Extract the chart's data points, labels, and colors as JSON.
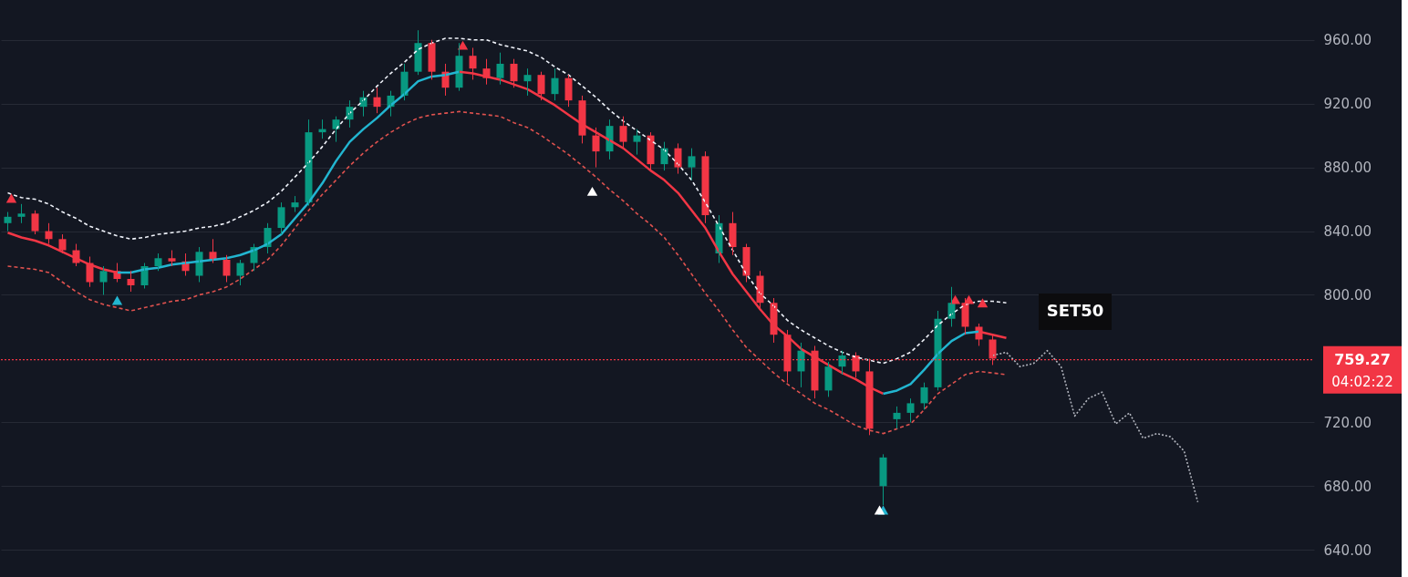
{
  "chart_data": {
    "type": "candlestick",
    "categories": [
      null,
      null,
      null,
      null,
      null,
      null,
      null,
      null,
      null,
      null,
      null,
      null,
      null,
      null,
      null,
      null,
      null,
      null,
      null,
      null,
      null,
      null,
      null,
      null,
      null,
      null,
      null,
      null,
      null,
      null,
      null,
      null,
      null,
      null,
      null,
      null,
      null,
      null,
      null,
      null,
      null,
      null,
      null,
      null,
      null,
      null,
      null,
      null,
      null,
      null,
      null,
      null,
      null,
      null,
      null,
      null,
      null,
      null,
      null,
      null,
      null,
      null,
      null,
      null,
      null,
      null,
      null,
      null,
      null,
      null,
      null,
      null,
      null,
      null,
      null,
      null,
      null,
      null,
      null,
      null,
      null,
      null,
      null,
      null,
      null,
      null,
      null,
      null,
      null,
      null,
      null,
      null,
      null,
      null,
      null,
      null
    ],
    "ohlc": [
      [
        845,
        852,
        840,
        849
      ],
      [
        849,
        857,
        845,
        851
      ],
      [
        851,
        853,
        838,
        840
      ],
      [
        840,
        845,
        832,
        835
      ],
      [
        835,
        838,
        826,
        828
      ],
      [
        828,
        832,
        818,
        820
      ],
      [
        820,
        824,
        805,
        808
      ],
      [
        808,
        818,
        800,
        815
      ],
      [
        815,
        820,
        808,
        810
      ],
      [
        810,
        815,
        802,
        806
      ],
      [
        806,
        820,
        804,
        818
      ],
      [
        818,
        826,
        815,
        823
      ],
      [
        823,
        828,
        818,
        821
      ],
      [
        821,
        826,
        812,
        815
      ],
      [
        812,
        830,
        808,
        827
      ],
      [
        827,
        835,
        820,
        822
      ],
      [
        822,
        825,
        808,
        812
      ],
      [
        812,
        822,
        806,
        820
      ],
      [
        820,
        832,
        815,
        830
      ],
      [
        830,
        845,
        826,
        842
      ],
      [
        842,
        858,
        838,
        855
      ],
      [
        855,
        862,
        852,
        858
      ],
      [
        858,
        910,
        856,
        902
      ],
      [
        902,
        910,
        898,
        904
      ],
      [
        904,
        912,
        896,
        910
      ],
      [
        910,
        922,
        905,
        918
      ],
      [
        918,
        928,
        912,
        924
      ],
      [
        924,
        930,
        914,
        918
      ],
      [
        918,
        928,
        912,
        925
      ],
      [
        925,
        945,
        922,
        940
      ],
      [
        940,
        966,
        938,
        958
      ],
      [
        958,
        960,
        935,
        940
      ],
      [
        940,
        945,
        925,
        930
      ],
      [
        930,
        958,
        928,
        950
      ],
      [
        950,
        955,
        935,
        942
      ],
      [
        942,
        948,
        932,
        936
      ],
      [
        936,
        952,
        932,
        945
      ],
      [
        945,
        948,
        930,
        934
      ],
      [
        934,
        942,
        925,
        938
      ],
      [
        938,
        940,
        922,
        926
      ],
      [
        926,
        942,
        922,
        936
      ],
      [
        936,
        938,
        918,
        922
      ],
      [
        922,
        925,
        895,
        900
      ],
      [
        900,
        905,
        880,
        890
      ],
      [
        890,
        910,
        885,
        906
      ],
      [
        906,
        912,
        892,
        896
      ],
      [
        896,
        904,
        888,
        900
      ],
      [
        900,
        902,
        878,
        882
      ],
      [
        882,
        896,
        878,
        892
      ],
      [
        892,
        895,
        876,
        880
      ],
      [
        880,
        892,
        872,
        887
      ],
      [
        887,
        890,
        845,
        850
      ],
      [
        826,
        850,
        820,
        845
      ],
      [
        845,
        852,
        825,
        830
      ],
      [
        830,
        832,
        808,
        812
      ],
      [
        812,
        815,
        790,
        795
      ],
      [
        795,
        798,
        770,
        775
      ],
      [
        775,
        778,
        745,
        752
      ],
      [
        752,
        770,
        742,
        765
      ],
      [
        765,
        768,
        735,
        740
      ],
      [
        740,
        758,
        736,
        755
      ],
      [
        755,
        765,
        750,
        762
      ],
      [
        762,
        764,
        748,
        752
      ],
      [
        752,
        760,
        712,
        716
      ],
      [
        680,
        700,
        668,
        698
      ],
      [
        722,
        730,
        716,
        726
      ],
      [
        726,
        735,
        720,
        732
      ],
      [
        732,
        745,
        728,
        742
      ],
      [
        742,
        790,
        740,
        785
      ],
      [
        785,
        805,
        780,
        795
      ],
      [
        795,
        798,
        775,
        780
      ],
      [
        780,
        782,
        768,
        772
      ],
      [
        772,
        775,
        756,
        760
      ],
      null,
      null,
      null,
      null,
      null,
      null,
      null,
      null,
      null,
      null,
      null,
      null,
      null,
      null,
      null,
      null,
      null,
      null,
      null,
      null,
      null,
      null,
      null
    ],
    "colors": [
      "#089981",
      "#089981",
      "#f23645",
      "#f23645",
      "#f23645",
      "#f23645",
      "#f23645",
      "#089981",
      "#f23645",
      "#f23645",
      "#089981",
      "#089981",
      "#f23645",
      "#f23645",
      "#089981",
      "#f23645",
      "#f23645",
      "#089981",
      "#089981",
      "#089981",
      "#089981",
      "#089981",
      "#089981",
      "#089981",
      "#089981",
      "#089981",
      "#089981",
      "#f23645",
      "#089981",
      "#089981",
      "#089981",
      "#f23645",
      "#f23645",
      "#089981",
      "#f23645",
      "#f23645",
      "#089981",
      "#f23645",
      "#089981",
      "#f23645",
      "#089981",
      "#f23645",
      "#f23645",
      "#f23645",
      "#089981",
      "#f23645",
      "#089981",
      "#f23645",
      "#089981",
      "#f23645",
      "#089981",
      "#f23645",
      "#089981",
      "#f23645",
      "#f23645",
      "#f23645",
      "#f23645",
      "#f23645",
      "#089981",
      "#f23645",
      "#089981",
      "#089981",
      "#f23645",
      "#f23645",
      "#089981",
      "#089981",
      "#089981",
      "#089981",
      "#089981",
      "#089981",
      "#f23645",
      "#f23645",
      "#f23645",
      null,
      null,
      null,
      null,
      null,
      null,
      null,
      null,
      null,
      null,
      null,
      null,
      null,
      null,
      null,
      null,
      null,
      null,
      null,
      null,
      null,
      null,
      null
    ],
    "series": [
      {
        "type": "line",
        "color": "#f0f3fa",
        "line_style": "dashed",
        "values": [
          864,
          861,
          860,
          857,
          852,
          848,
          843,
          840,
          837,
          835,
          836,
          838,
          839,
          840,
          842,
          843,
          845,
          849,
          853,
          858,
          865,
          874,
          883,
          893,
          904,
          914,
          922,
          931,
          939,
          946,
          954,
          958,
          961,
          961,
          960,
          960,
          957,
          955,
          953,
          949,
          943,
          938,
          931,
          924,
          916,
          909,
          903,
          897,
          891,
          882,
          872,
          858,
          843,
          828,
          813,
          801,
          793,
          784,
          778,
          773,
          768,
          764,
          761,
          759,
          757,
          760,
          764,
          772,
          781,
          788,
          794,
          796,
          796,
          795,
          null,
          null,
          null,
          null,
          null,
          null,
          null,
          null,
          null,
          null,
          null,
          null,
          null,
          null,
          null,
          null,
          null,
          null,
          null,
          null,
          null,
          null
        ]
      },
      {
        "type": "line",
        "color": "#e0524f",
        "line_style": "dashed",
        "values": [
          818,
          817,
          816,
          814,
          808,
          802,
          797,
          794,
          792,
          790,
          792,
          794,
          796,
          797,
          800,
          802,
          805,
          810,
          816,
          822,
          831,
          842,
          853,
          863,
          872,
          881,
          889,
          896,
          902,
          907,
          911,
          913,
          914,
          915,
          914,
          913,
          912,
          908,
          905,
          900,
          894,
          888,
          881,
          874,
          866,
          859,
          851,
          844,
          836,
          825,
          813,
          801,
          790,
          778,
          767,
          759,
          751,
          744,
          738,
          732,
          728,
          723,
          718,
          715,
          713,
          716,
          719,
          728,
          738,
          744,
          750,
          752,
          751,
          750,
          null,
          null,
          null,
          null,
          null,
          null,
          null,
          null,
          null,
          null,
          null,
          null,
          null,
          null,
          null,
          null,
          null,
          null,
          null,
          null,
          null,
          null
        ]
      },
      {
        "type": "line",
        "color": "#f23645",
        "line_style": "solid",
        "values": [
          839,
          836,
          834,
          831,
          827,
          823,
          819,
          816,
          814,
          null,
          null,
          null,
          null,
          null,
          null,
          null,
          null,
          null,
          null,
          null,
          null,
          null,
          null,
          null,
          null,
          null,
          null,
          null,
          null,
          null,
          null,
          null,
          null,
          940,
          939,
          937,
          935,
          932,
          929,
          924,
          919,
          913,
          907,
          902,
          897,
          892,
          885,
          878,
          872,
          864,
          853,
          842,
          827,
          813,
          802,
          791,
          781,
          774,
          766,
          761,
          756,
          751,
          747,
          742,
          738,
          null,
          null,
          null,
          null,
          null,
          null,
          777,
          775,
          773,
          null,
          null,
          null,
          null,
          null,
          null,
          null,
          null,
          null,
          null,
          null,
          null,
          null,
          null,
          null,
          null,
          null,
          null,
          null,
          null,
          null,
          null
        ]
      },
      {
        "type": "line",
        "color": "#22b5d0",
        "line_style": "solid",
        "values": [
          null,
          null,
          null,
          null,
          null,
          null,
          null,
          null,
          814,
          814,
          816,
          817,
          819,
          820,
          821,
          822,
          823,
          825,
          828,
          832,
          838,
          848,
          858,
          870,
          884,
          896,
          904,
          911,
          919,
          926,
          934,
          937,
          938,
          940,
          null,
          null,
          null,
          null,
          null,
          null,
          null,
          null,
          null,
          null,
          null,
          null,
          null,
          null,
          null,
          null,
          null,
          null,
          null,
          null,
          null,
          null,
          null,
          null,
          null,
          null,
          null,
          null,
          null,
          null,
          738,
          740,
          744,
          753,
          763,
          771,
          776,
          777,
          null,
          null,
          null,
          null,
          null,
          null,
          null,
          null,
          null,
          null,
          null,
          null,
          null,
          null,
          null,
          null,
          null,
          null,
          null,
          null,
          null,
          null,
          null,
          null
        ]
      },
      {
        "type": "line",
        "color": "#b2b5be",
        "line_style": "dotted",
        "values": [
          null,
          null,
          null,
          null,
          null,
          null,
          null,
          null,
          null,
          null,
          null,
          null,
          null,
          null,
          null,
          null,
          null,
          null,
          null,
          null,
          null,
          null,
          null,
          null,
          null,
          null,
          null,
          null,
          null,
          null,
          null,
          null,
          null,
          null,
          null,
          null,
          null,
          null,
          null,
          null,
          null,
          null,
          null,
          null,
          null,
          null,
          null,
          null,
          null,
          null,
          null,
          null,
          null,
          null,
          null,
          null,
          null,
          null,
          null,
          null,
          null,
          null,
          null,
          null,
          null,
          null,
          null,
          null,
          null,
          null,
          null,
          null,
          762,
          764,
          755,
          757,
          765,
          755,
          724,
          735,
          739,
          719,
          726,
          710,
          713,
          711,
          702,
          670,
          null,
          null,
          null,
          null,
          null,
          null,
          null,
          null
        ]
      },
      {
        "type": "scatter",
        "color": "#f23645",
        "marker": "triangle",
        "values": [
          860.6,
          null,
          null,
          null,
          null,
          null,
          null,
          null,
          null,
          null,
          null,
          null,
          null,
          null,
          null,
          null,
          null,
          null,
          null,
          null,
          null,
          null,
          null,
          null,
          null,
          null,
          null,
          null,
          null,
          null,
          null,
          null,
          null,
          956.6,
          null,
          null,
          null,
          null,
          null,
          null,
          null,
          null,
          null,
          null,
          null,
          null,
          null,
          null,
          null,
          null,
          null,
          null,
          null,
          null,
          null,
          null,
          null,
          null,
          null,
          null,
          null,
          null,
          null,
          null,
          null,
          null,
          null,
          null,
          null,
          797.1,
          797.1,
          795,
          null,
          null,
          null,
          null,
          null,
          null,
          null,
          null,
          null,
          null,
          null,
          null,
          null,
          null,
          null,
          null,
          null,
          null,
          null,
          null,
          null,
          null,
          null,
          null
        ]
      },
      {
        "type": "scatter",
        "color": "#22b5d0",
        "marker": "triangle",
        "values": [
          null,
          null,
          null,
          null,
          null,
          null,
          null,
          null,
          796.6,
          null,
          null,
          null,
          null,
          null,
          null,
          null,
          null,
          null,
          null,
          null,
          null,
          null,
          null,
          null,
          null,
          null,
          null,
          null,
          null,
          null,
          null,
          null,
          null,
          null,
          null,
          null,
          null,
          null,
          null,
          null,
          null,
          null,
          null,
          null,
          null,
          null,
          null,
          null,
          null,
          null,
          null,
          null,
          null,
          null,
          null,
          null,
          null,
          null,
          null,
          null,
          null,
          null,
          null,
          null,
          665,
          null,
          null,
          null,
          null,
          null,
          null,
          null,
          null,
          null,
          null,
          null,
          null,
          null,
          null,
          null,
          null,
          null,
          null,
          null,
          null,
          null,
          null,
          null,
          null,
          null,
          null,
          null,
          null,
          null,
          null,
          null
        ]
      },
      {
        "type": "scatter",
        "color": "#ffffff",
        "marker": "triangle",
        "values": [
          null,
          null,
          null,
          null,
          null,
          null,
          null,
          null,
          null,
          null,
          null,
          null,
          null,
          null,
          null,
          null,
          null,
          null,
          null,
          null,
          null,
          null,
          null,
          null,
          null,
          null,
          null,
          null,
          null,
          null,
          null,
          null,
          null,
          null,
          null,
          null,
          null,
          null,
          null,
          null,
          null,
          null,
          null,
          865,
          null,
          null,
          null,
          null,
          null,
          null,
          null,
          null,
          null,
          null,
          null,
          null,
          null,
          null,
          null,
          null,
          null,
          null,
          null,
          null,
          665,
          null,
          null,
          null,
          null,
          null,
          null,
          null,
          null,
          null,
          null,
          null,
          null,
          null,
          null,
          null,
          null,
          null,
          null,
          null,
          null,
          null,
          null,
          null,
          null,
          null,
          null,
          null,
          null,
          null,
          null,
          null
        ]
      }
    ],
    "ylim": [
      623,
      985
    ],
    "yticks": [
      {
        "value": 640,
        "label": "640.00"
      },
      {
        "value": 680,
        "label": "680.00"
      },
      {
        "value": 720,
        "label": "720.00"
      },
      {
        "value": 800,
        "label": "800.00"
      },
      {
        "value": 840,
        "label": "840.00"
      },
      {
        "value": 880,
        "label": "880.00"
      },
      {
        "value": 920,
        "label": "920.00"
      },
      {
        "value": 960,
        "label": "960.00"
      }
    ],
    "ref_lines": [
      {
        "axis": "y",
        "value": 759.27,
        "label": "759.27",
        "color": "#f23645",
        "line_style": "dotted"
      }
    ],
    "annotations": [
      "SET50",
      "04:02:22"
    ],
    "grid": "y",
    "tick_labels": "y"
  }
}
